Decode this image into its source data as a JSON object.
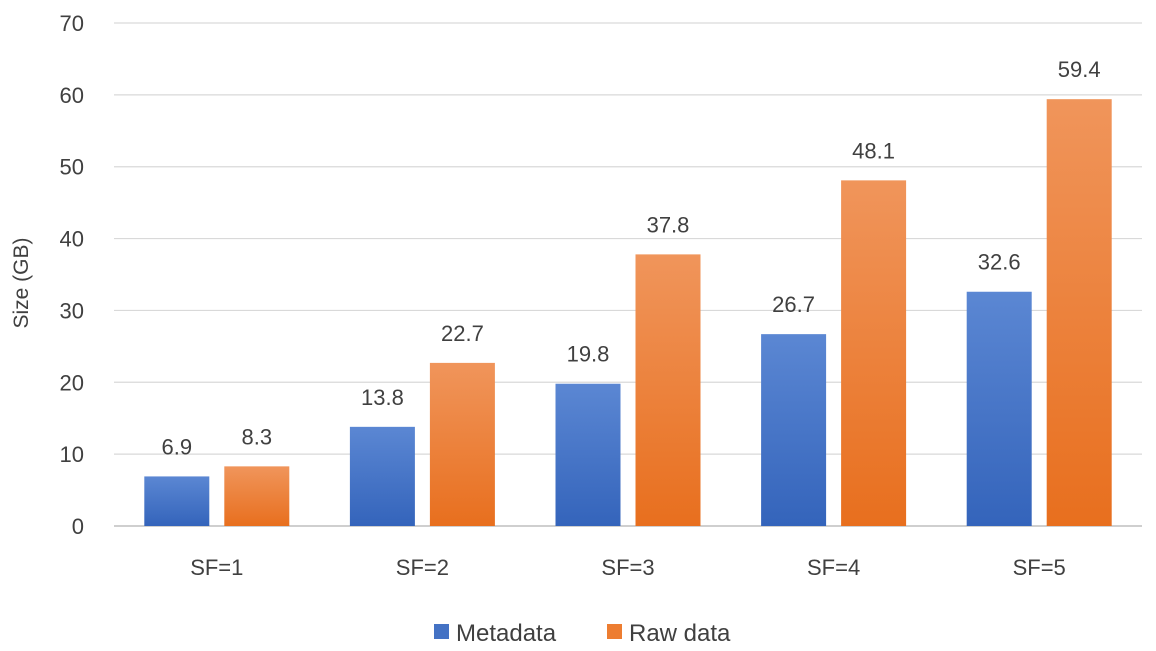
{
  "chart_data": {
    "type": "bar",
    "categories": [
      "SF=1",
      "SF=2",
      "SF=3",
      "SF=4",
      "SF=5"
    ],
    "series": [
      {
        "name": "Metadata",
        "values": [
          6.9,
          13.8,
          19.8,
          26.7,
          32.6
        ],
        "color": "#4472C4"
      },
      {
        "name": "Raw data",
        "values": [
          8.3,
          22.7,
          37.8,
          48.1,
          59.4
        ],
        "color": "#ED7D31"
      }
    ],
    "data_labels": [
      [
        "6.9",
        "13.8",
        "19.8",
        "26.7",
        "32.6"
      ],
      [
        "8.3",
        "22.7",
        "37.8",
        "48.1",
        "59.4"
      ]
    ],
    "title": "",
    "xlabel": "",
    "ylabel": "Size (GB)",
    "ylim": [
      0,
      70
    ],
    "yticks": [
      "0",
      "10",
      "20",
      "30",
      "40",
      "50",
      "60",
      "70"
    ],
    "grid": true,
    "legend_position": "bottom"
  }
}
